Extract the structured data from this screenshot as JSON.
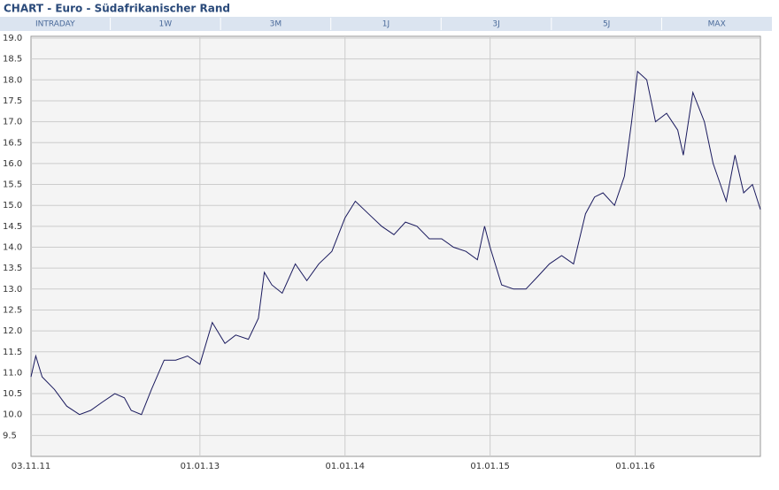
{
  "header": {
    "title": "CHART - Euro - Südafrikanischer Rand",
    "tabs": [
      "INTRADAY",
      "1W",
      "3M",
      "1J",
      "3J",
      "5J",
      "MAX"
    ]
  },
  "chart_data": {
    "type": "line",
    "x": [
      "2011-11-03",
      "2011-11-15",
      "2011-12-01",
      "2012-01-01",
      "2012-02-01",
      "2012-03-04",
      "2012-04-01",
      "2012-05-01",
      "2012-06-01",
      "2012-06-25",
      "2012-07-12",
      "2012-08-07",
      "2012-09-01",
      "2012-10-03",
      "2012-11-01",
      "2012-12-01",
      "2013-01-01",
      "2013-02-01",
      "2013-03-05",
      "2013-04-01",
      "2013-05-03",
      "2013-05-28",
      "2013-06-12",
      "2013-07-01",
      "2013-07-27",
      "2013-08-29",
      "2013-09-27",
      "2013-10-27",
      "2013-11-29",
      "2014-01-01",
      "2014-01-27",
      "2014-03-01",
      "2014-04-03",
      "2014-05-04",
      "2014-06-02",
      "2014-07-01",
      "2014-08-01",
      "2014-09-01",
      "2014-10-01",
      "2014-11-01",
      "2014-11-30",
      "2014-12-18",
      "2015-01-01",
      "2015-01-30",
      "2015-03-01",
      "2015-04-01",
      "2015-05-01",
      "2015-05-30",
      "2015-06-30",
      "2015-07-30",
      "2015-08-29",
      "2015-09-21",
      "2015-10-12",
      "2015-11-10",
      "2015-12-05",
      "2015-12-23",
      "2016-01-07",
      "2016-01-30",
      "2016-02-21",
      "2016-03-20",
      "2016-04-17",
      "2016-05-01",
      "2016-05-25",
      "2016-06-23",
      "2016-07-15",
      "2016-08-17",
      "2016-09-08",
      "2016-09-30",
      "2016-10-22",
      "2016-11-11"
    ],
    "values": [
      10.9,
      11.4,
      10.9,
      10.6,
      10.2,
      10.0,
      10.1,
      10.3,
      10.5,
      10.4,
      10.1,
      10.0,
      10.6,
      11.3,
      11.3,
      11.4,
      11.2,
      12.2,
      11.7,
      11.9,
      11.8,
      12.3,
      13.4,
      13.1,
      12.9,
      13.6,
      13.2,
      13.6,
      13.9,
      14.7,
      15.1,
      14.8,
      14.5,
      14.3,
      14.6,
      14.5,
      14.2,
      14.2,
      14.0,
      13.9,
      13.7,
      14.5,
      14.0,
      13.1,
      13.0,
      13.0,
      13.3,
      13.6,
      13.8,
      13.6,
      14.8,
      15.2,
      15.3,
      15.0,
      15.7,
      17.0,
      18.2,
      18.0,
      17.0,
      17.2,
      16.8,
      16.2,
      17.7,
      17.0,
      16.0,
      15.1,
      16.2,
      15.3,
      15.5,
      14.9
    ],
    "color": "#1a1a5e",
    "xlim": [
      "2011-11-03",
      "2016-11-11"
    ],
    "xticks": [
      {
        "value": "2011-11-03",
        "label": "03.11.11"
      },
      {
        "value": "2013-01-01",
        "label": "01.01.13"
      },
      {
        "value": "2014-01-01",
        "label": "01.01.14"
      },
      {
        "value": "2015-01-01",
        "label": "01.01.15"
      },
      {
        "value": "2016-01-01",
        "label": "01.01.16"
      }
    ],
    "ylim": [
      9,
      19
    ],
    "yticks": [
      9.5,
      {
        "value": 10,
        "label": "10.0"
      },
      10.5,
      {
        "value": 11,
        "label": "11.0"
      },
      11.5,
      {
        "value": 12,
        "label": "12.0"
      },
      12.5,
      {
        "value": 13,
        "label": "13.0"
      },
      13.5,
      {
        "value": 14,
        "label": "14.0"
      },
      14.5,
      {
        "value": 15,
        "label": "15.0"
      },
      15.5,
      {
        "value": 16,
        "label": "16.0"
      },
      16.5,
      {
        "value": 17,
        "label": "17.0"
      },
      17.5,
      {
        "value": 18,
        "label": "18.0"
      },
      18.5,
      {
        "value": 19,
        "label": "19.0"
      }
    ],
    "grid": true
  }
}
